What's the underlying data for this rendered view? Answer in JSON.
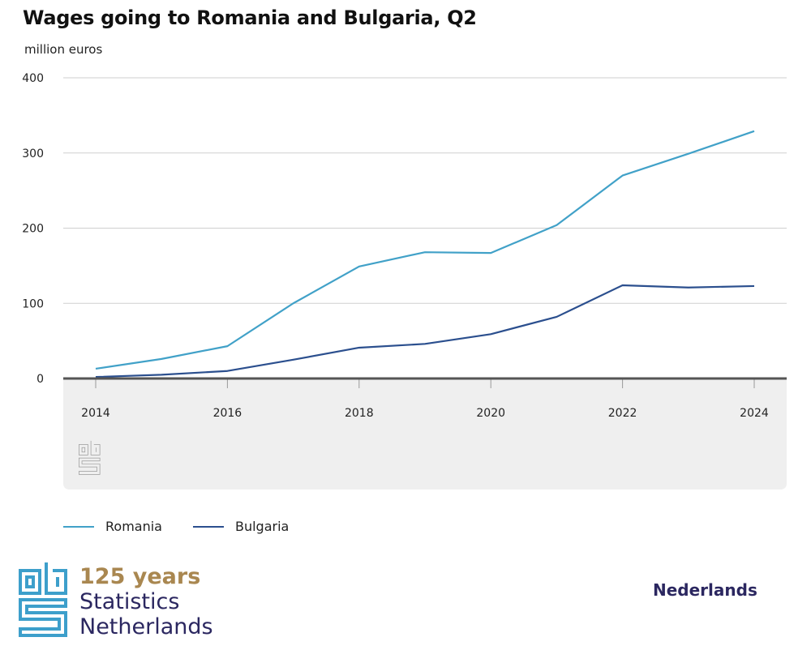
{
  "chart_data": {
    "type": "line",
    "title": "Wages going to Romania and Bulgaria, Q2",
    "ylabel": "million euros",
    "xlabel": "",
    "x": [
      2014,
      2015,
      2016,
      2017,
      2018,
      2019,
      2020,
      2021,
      2022,
      2023,
      2024
    ],
    "x_ticks": [
      "2014",
      "2016",
      "2018",
      "2020",
      "2022",
      "2024"
    ],
    "y_ticks": [
      "0",
      "100",
      "200",
      "300",
      "400"
    ],
    "ylim": [
      0,
      400
    ],
    "grid": true,
    "legend_position": "bottom-left",
    "series": [
      {
        "name": "Romania",
        "color": "#41a1c8",
        "values": [
          13,
          26,
          43,
          100,
          149,
          168,
          167,
          204,
          270,
          299,
          329
        ]
      },
      {
        "name": "Bulgaria",
        "color": "#2b4f8e",
        "values": [
          2,
          5,
          10,
          25,
          41,
          46,
          59,
          82,
          124,
          121,
          123
        ]
      }
    ]
  },
  "footer": {
    "brand_years": "125 years",
    "brand_line1": "Statistics",
    "brand_line2": "Netherlands",
    "language": "Nederlands"
  }
}
